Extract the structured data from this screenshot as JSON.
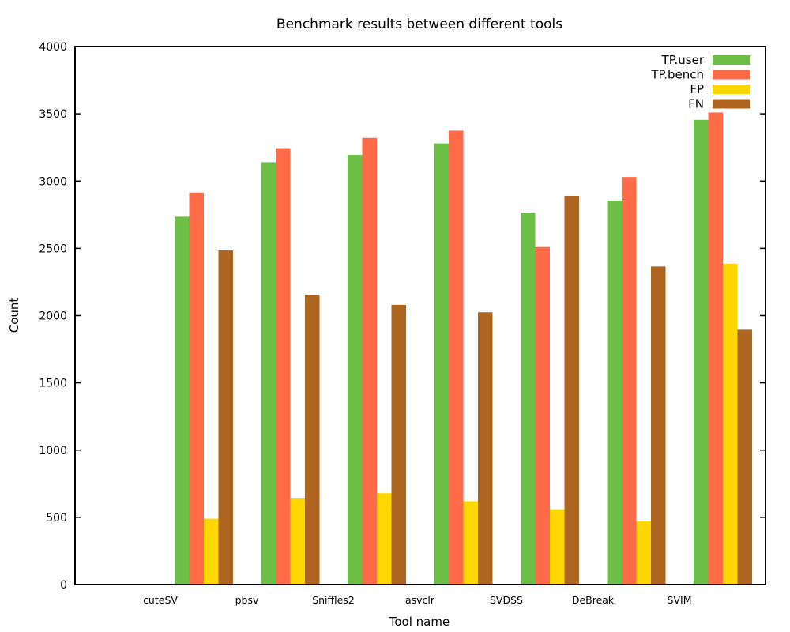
{
  "chart_data": {
    "type": "bar",
    "title": "Benchmark results between different tools",
    "xlabel": "Tool name",
    "ylabel": "Count",
    "categories": [
      "cuteSV",
      "pbsv",
      "Sniffles2",
      "asvclr",
      "SVDSS",
      "DeBreak",
      "SVIM"
    ],
    "ylim": [
      0,
      4000
    ],
    "yticks": [
      0,
      500,
      1000,
      1500,
      2000,
      2500,
      3000,
      3500,
      4000
    ],
    "grid": false,
    "legend_position": "top-right",
    "series": [
      {
        "name": "TP.user",
        "color": "#6dbe45",
        "values": [
          2735,
          3140,
          3195,
          3280,
          2765,
          2855,
          3455
        ]
      },
      {
        "name": "TP.bench",
        "color": "#ff6a47",
        "values": [
          2915,
          3245,
          3320,
          3375,
          2510,
          3030,
          3510
        ]
      },
      {
        "name": "FP",
        "color": "#ffd700",
        "values": [
          490,
          640,
          680,
          620,
          560,
          470,
          2385
        ]
      },
      {
        "name": "FN",
        "color": "#ad6520",
        "values": [
          2485,
          2155,
          2080,
          2025,
          2890,
          2365,
          1895
        ]
      }
    ]
  }
}
